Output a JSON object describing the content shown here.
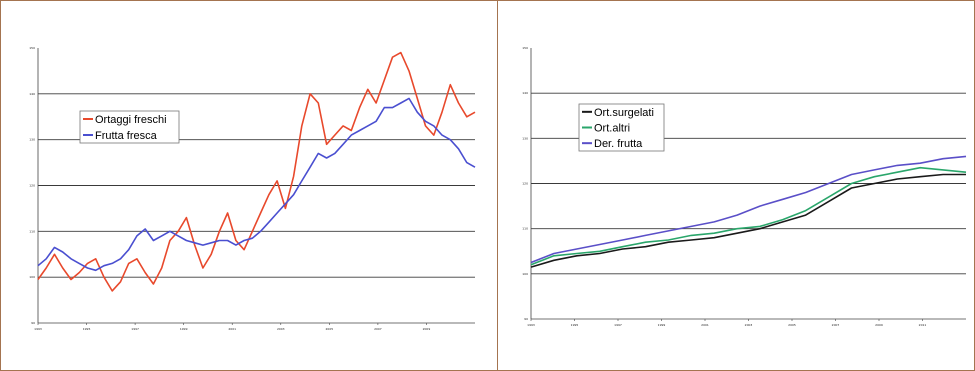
{
  "chart_data": [
    {
      "type": "line",
      "ylim": [
        90,
        150
      ],
      "yticks": [
        "90",
        "100",
        "110",
        "120",
        "130",
        "140",
        "150"
      ],
      "xticks": [
        "1993",
        "1995",
        "1997",
        "1999",
        "2001",
        "2003",
        "2005",
        "2007",
        "2009"
      ],
      "grid": true,
      "legend_position": "top-left",
      "series": [
        {
          "name": "Ortaggi freschi",
          "color": "#e8492c",
          "points": [
            [
              0,
              99.5
            ],
            [
              3,
              102
            ],
            [
              6,
              105
            ],
            [
              9,
              102
            ],
            [
              12,
              99.5
            ],
            [
              15,
              101
            ],
            [
              18,
              103
            ],
            [
              21,
              104
            ],
            [
              24,
              100
            ],
            [
              27,
              97
            ],
            [
              30,
              99
            ],
            [
              33,
              103
            ],
            [
              36,
              104
            ],
            [
              39,
              101
            ],
            [
              42,
              98.5
            ],
            [
              45,
              102
            ],
            [
              48,
              108
            ],
            [
              51,
              110
            ],
            [
              54,
              113
            ],
            [
              57,
              107
            ],
            [
              60,
              102
            ],
            [
              63,
              105
            ],
            [
              66,
              110
            ],
            [
              69,
              114
            ],
            [
              72,
              108
            ],
            [
              75,
              106
            ],
            [
              78,
              110
            ],
            [
              81,
              114
            ],
            [
              84,
              118
            ],
            [
              87,
              121
            ],
            [
              90,
              115
            ],
            [
              93,
              122
            ],
            [
              96,
              133
            ],
            [
              99,
              140
            ],
            [
              102,
              138
            ],
            [
              105,
              129
            ],
            [
              108,
              131
            ],
            [
              111,
              133
            ],
            [
              114,
              132
            ],
            [
              117,
              137
            ],
            [
              120,
              141
            ],
            [
              123,
              138
            ],
            [
              126,
              143
            ],
            [
              129,
              148
            ],
            [
              132,
              149
            ],
            [
              135,
              145
            ],
            [
              138,
              139
            ],
            [
              141,
              133
            ],
            [
              144,
              131
            ],
            [
              147,
              136
            ],
            [
              150,
              142
            ],
            [
              153,
              138
            ],
            [
              156,
              135
            ],
            [
              159,
              136
            ]
          ]
        },
        {
          "name": "Frutta fresca",
          "color": "#4a4fd0",
          "points": [
            [
              0,
              102.5
            ],
            [
              3,
              104
            ],
            [
              6,
              106.5
            ],
            [
              9,
              105.5
            ],
            [
              12,
              104
            ],
            [
              15,
              103
            ],
            [
              18,
              102
            ],
            [
              21,
              101.5
            ],
            [
              24,
              102.5
            ],
            [
              27,
              103
            ],
            [
              30,
              104
            ],
            [
              33,
              106
            ],
            [
              36,
              109
            ],
            [
              39,
              110.5
            ],
            [
              42,
              108
            ],
            [
              45,
              109
            ],
            [
              48,
              110
            ],
            [
              51,
              109
            ],
            [
              54,
              108
            ],
            [
              57,
              107.5
            ],
            [
              60,
              107
            ],
            [
              63,
              107.5
            ],
            [
              66,
              108
            ],
            [
              69,
              108
            ],
            [
              72,
              107
            ],
            [
              75,
              108
            ],
            [
              78,
              108.5
            ],
            [
              81,
              110
            ],
            [
              84,
              112
            ],
            [
              87,
              114
            ],
            [
              90,
              116
            ],
            [
              93,
              118
            ],
            [
              96,
              121
            ],
            [
              99,
              124
            ],
            [
              102,
              127
            ],
            [
              105,
              126
            ],
            [
              108,
              127
            ],
            [
              111,
              129
            ],
            [
              114,
              131
            ],
            [
              117,
              132
            ],
            [
              120,
              133
            ],
            [
              123,
              134
            ],
            [
              126,
              137
            ],
            [
              129,
              137
            ],
            [
              132,
              138
            ],
            [
              135,
              139
            ],
            [
              138,
              136
            ],
            [
              141,
              134
            ],
            [
              144,
              133
            ],
            [
              147,
              131
            ],
            [
              150,
              130
            ],
            [
              153,
              128
            ],
            [
              156,
              125
            ],
            [
              159,
              124
            ]
          ]
        }
      ]
    },
    {
      "type": "line",
      "ylim": [
        90,
        150
      ],
      "yticks": [
        "90",
        "100",
        "110",
        "120",
        "130",
        "140",
        "150"
      ],
      "xticks": [
        "1993",
        "1995",
        "1997",
        "1999",
        "2001",
        "2003",
        "2005",
        "2007",
        "2009",
        "2011"
      ],
      "grid": true,
      "legend_position": "top-left",
      "series": [
        {
          "name": "Ort.surgelati",
          "color": "#1a1a1a",
          "points": [
            [
              0,
              101.5
            ],
            [
              10,
              103
            ],
            [
              20,
              104
            ],
            [
              30,
              104.5
            ],
            [
              40,
              105.5
            ],
            [
              50,
              106
            ],
            [
              60,
              107
            ],
            [
              70,
              107.5
            ],
            [
              80,
              108
            ],
            [
              90,
              109
            ],
            [
              100,
              110
            ],
            [
              110,
              111.5
            ],
            [
              120,
              113
            ],
            [
              130,
              116
            ],
            [
              140,
              119
            ],
            [
              150,
              120
            ],
            [
              160,
              121
            ],
            [
              170,
              121.5
            ],
            [
              180,
              122
            ],
            [
              190,
              122
            ]
          ]
        },
        {
          "name": "Ort.altri",
          "color": "#2aa66b",
          "points": [
            [
              0,
              102
            ],
            [
              10,
              104
            ],
            [
              20,
              104.5
            ],
            [
              30,
              105
            ],
            [
              40,
              106
            ],
            [
              50,
              107
            ],
            [
              60,
              107.5
            ],
            [
              70,
              108.5
            ],
            [
              80,
              109
            ],
            [
              90,
              110
            ],
            [
              100,
              110.5
            ],
            [
              110,
              112
            ],
            [
              120,
              114
            ],
            [
              130,
              117
            ],
            [
              140,
              120
            ],
            [
              150,
              121.5
            ],
            [
              160,
              122.5
            ],
            [
              170,
              123.5
            ],
            [
              180,
              123
            ],
            [
              190,
              122.5
            ]
          ]
        },
        {
          "name": "Der. frutta",
          "color": "#5a4fc8",
          "points": [
            [
              0,
              102.5
            ],
            [
              10,
              104.5
            ],
            [
              20,
              105.5
            ],
            [
              30,
              106.5
            ],
            [
              40,
              107.5
            ],
            [
              50,
              108.5
            ],
            [
              60,
              109.5
            ],
            [
              70,
              110.5
            ],
            [
              80,
              111.5
            ],
            [
              90,
              113
            ],
            [
              100,
              115
            ],
            [
              110,
              116.5
            ],
            [
              120,
              118
            ],
            [
              130,
              120
            ],
            [
              140,
              122
            ],
            [
              150,
              123
            ],
            [
              160,
              124
            ],
            [
              170,
              124.5
            ],
            [
              180,
              125.5
            ],
            [
              190,
              126
            ]
          ]
        }
      ]
    }
  ]
}
